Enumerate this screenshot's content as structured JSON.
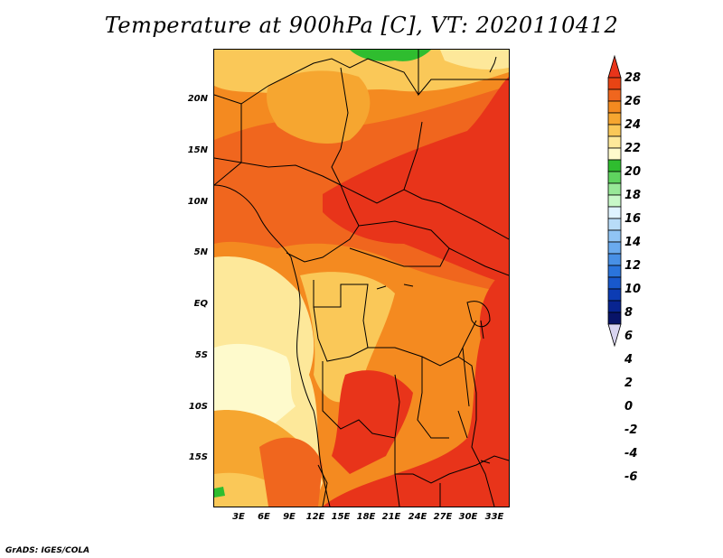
{
  "title": "Temperature at 900hPa [C], VT: 2020110412",
  "credit": "GrADS: IGES/COLA",
  "lat_labels": [
    "20N",
    "15N",
    "10N",
    "5N",
    "EQ",
    "5S",
    "10S",
    "15S"
  ],
  "lon_labels": [
    "3E",
    "6E",
    "9E",
    "12E",
    "15E",
    "18E",
    "21E",
    "24E",
    "27E",
    "30E",
    "33E"
  ],
  "colorbar": {
    "labels": [
      "28",
      "26",
      "24",
      "22",
      "20",
      "18",
      "16",
      "14",
      "12",
      "10",
      "8",
      "6",
      "4",
      "2",
      "0",
      "-2",
      "-4",
      "-6"
    ],
    "colors": [
      "#e8341a",
      "#e84414",
      "#f0661e",
      "#f48a20",
      "#f6a630",
      "#fac858",
      "#fde89a",
      "#fefacc",
      "#2fbd2f",
      "#5fd35f",
      "#98e898",
      "#c8f8c8",
      "#dff3ff",
      "#b8dcf8",
      "#90c4f4",
      "#6aaaee",
      "#4890e6",
      "#2a74dc",
      "#1858cc",
      "#0c3cb4",
      "#082490",
      "#081468",
      "#d8d4f0"
    ]
  }
}
